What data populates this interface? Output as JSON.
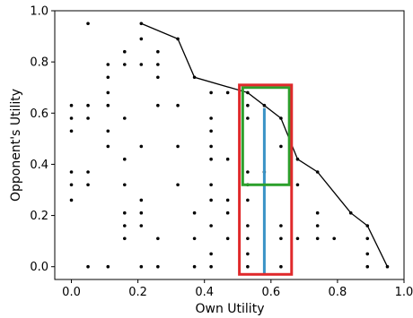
{
  "chart_data": {
    "type": "scatter",
    "title": "",
    "xlabel": "Own Utility",
    "ylabel": "Opponent's Utility",
    "xlim": [
      -0.05,
      1.0
    ],
    "ylim": [
      -0.05,
      1.0
    ],
    "xticks": [
      0.0,
      0.2,
      0.4,
      0.6,
      0.8,
      1.0
    ],
    "yticks": [
      0.0,
      0.2,
      0.4,
      0.6,
      0.8,
      1.0
    ],
    "xtick_labels": [
      "0.0",
      "0.2",
      "0.4",
      "0.6",
      "0.8",
      "1.0"
    ],
    "ytick_labels": [
      "0.0",
      "0.2",
      "0.4",
      "0.6",
      "0.8",
      "1.0"
    ],
    "grid": false,
    "colors": {
      "points": "#000000",
      "frontier": "#000000",
      "red_box": "#e0292b",
      "green_box": "#2ca02c",
      "blue_line": "#3a93c6"
    },
    "points": [
      [
        0.05,
        0.95
      ],
      [
        0.21,
        0.95
      ],
      [
        0.21,
        0.89
      ],
      [
        0.16,
        0.84
      ],
      [
        0.26,
        0.84
      ],
      [
        0.32,
        0.89
      ],
      [
        0.11,
        0.79
      ],
      [
        0.16,
        0.79
      ],
      [
        0.21,
        0.79
      ],
      [
        0.26,
        0.79
      ],
      [
        0.11,
        0.74
      ],
      [
        0.26,
        0.74
      ],
      [
        0.37,
        0.74
      ],
      [
        0.11,
        0.68
      ],
      [
        0.42,
        0.68
      ],
      [
        0.47,
        0.68
      ],
      [
        0.53,
        0.68
      ],
      [
        0.0,
        0.63
      ],
      [
        0.05,
        0.63
      ],
      [
        0.11,
        0.63
      ],
      [
        0.26,
        0.63
      ],
      [
        0.32,
        0.63
      ],
      [
        0.53,
        0.63
      ],
      [
        0.58,
        0.63
      ],
      [
        0.0,
        0.58
      ],
      [
        0.05,
        0.58
      ],
      [
        0.16,
        0.58
      ],
      [
        0.42,
        0.58
      ],
      [
        0.53,
        0.58
      ],
      [
        0.63,
        0.58
      ],
      [
        0.0,
        0.53
      ],
      [
        0.11,
        0.53
      ],
      [
        0.42,
        0.53
      ],
      [
        0.11,
        0.47
      ],
      [
        0.21,
        0.47
      ],
      [
        0.32,
        0.47
      ],
      [
        0.42,
        0.47
      ],
      [
        0.63,
        0.47
      ],
      [
        0.16,
        0.42
      ],
      [
        0.42,
        0.42
      ],
      [
        0.47,
        0.42
      ],
      [
        0.68,
        0.42
      ],
      [
        0.0,
        0.37
      ],
      [
        0.05,
        0.37
      ],
      [
        0.53,
        0.37
      ],
      [
        0.58,
        0.37
      ],
      [
        0.74,
        0.37
      ],
      [
        0.0,
        0.32
      ],
      [
        0.05,
        0.32
      ],
      [
        0.16,
        0.32
      ],
      [
        0.32,
        0.32
      ],
      [
        0.42,
        0.32
      ],
      [
        0.53,
        0.32
      ],
      [
        0.68,
        0.32
      ],
      [
        0.0,
        0.26
      ],
      [
        0.21,
        0.26
      ],
      [
        0.42,
        0.26
      ],
      [
        0.47,
        0.26
      ],
      [
        0.53,
        0.26
      ],
      [
        0.16,
        0.21
      ],
      [
        0.21,
        0.21
      ],
      [
        0.37,
        0.21
      ],
      [
        0.47,
        0.21
      ],
      [
        0.74,
        0.21
      ],
      [
        0.84,
        0.21
      ],
      [
        0.16,
        0.16
      ],
      [
        0.21,
        0.16
      ],
      [
        0.42,
        0.16
      ],
      [
        0.53,
        0.16
      ],
      [
        0.63,
        0.16
      ],
      [
        0.74,
        0.16
      ],
      [
        0.89,
        0.16
      ],
      [
        0.16,
        0.11
      ],
      [
        0.26,
        0.11
      ],
      [
        0.37,
        0.11
      ],
      [
        0.47,
        0.11
      ],
      [
        0.53,
        0.11
      ],
      [
        0.63,
        0.11
      ],
      [
        0.68,
        0.11
      ],
      [
        0.74,
        0.11
      ],
      [
        0.79,
        0.11
      ],
      [
        0.89,
        0.11
      ],
      [
        0.42,
        0.05
      ],
      [
        0.53,
        0.05
      ],
      [
        0.89,
        0.05
      ],
      [
        0.05,
        0.0
      ],
      [
        0.11,
        0.0
      ],
      [
        0.21,
        0.0
      ],
      [
        0.26,
        0.0
      ],
      [
        0.37,
        0.0
      ],
      [
        0.42,
        0.0
      ],
      [
        0.53,
        0.0
      ],
      [
        0.63,
        0.0
      ],
      [
        0.89,
        0.0
      ],
      [
        0.95,
        0.0
      ]
    ],
    "frontier": [
      [
        0.21,
        0.95
      ],
      [
        0.32,
        0.89
      ],
      [
        0.37,
        0.74
      ],
      [
        0.53,
        0.68
      ],
      [
        0.63,
        0.58
      ],
      [
        0.68,
        0.42
      ],
      [
        0.74,
        0.37
      ],
      [
        0.84,
        0.21
      ],
      [
        0.89,
        0.16
      ],
      [
        0.95,
        0.0
      ]
    ],
    "red_box": {
      "x": [
        0.505,
        0.662
      ],
      "y": [
        -0.03,
        0.71
      ]
    },
    "green_box": {
      "x": [
        0.515,
        0.655
      ],
      "y": [
        0.32,
        0.7
      ]
    },
    "blue_line": {
      "x": 0.58,
      "y": [
        -0.03,
        0.62
      ]
    }
  }
}
